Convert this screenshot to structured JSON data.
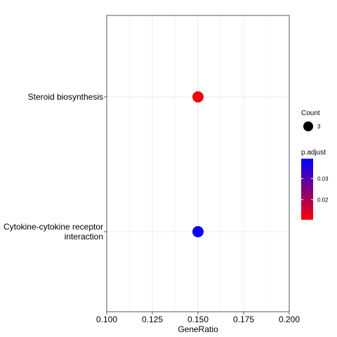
{
  "chart_data": {
    "type": "scatter",
    "xlabel": "GeneRatio",
    "ylabel": "",
    "xlim": [
      0.1,
      0.2
    ],
    "x_ticks": [
      "0.100",
      "0.125",
      "0.150",
      "0.175",
      "0.200"
    ],
    "x_tick_values": [
      0.1,
      0.125,
      0.15,
      0.175,
      0.2
    ],
    "categories": [
      "Steroid biosynthesis",
      "Cytokine-cytokine receptor interaction"
    ],
    "category_lines": [
      [
        "Steroid biosynthesis"
      ],
      [
        "Cytokine-cytokine receptor",
        "interaction"
      ]
    ],
    "points": [
      {
        "term": "Steroid biosynthesis",
        "x": 0.15,
        "count": 3,
        "p_adjust": 0.011,
        "color": "#f5000a"
      },
      {
        "term": "Cytokine-cytokine receptor interaction",
        "x": 0.15,
        "count": 3,
        "p_adjust": 0.039,
        "color": "#0a00f5"
      }
    ],
    "grid": true,
    "legend": {
      "position": "right",
      "size_title": "Count",
      "size_values": [
        "3"
      ],
      "color_title": "p.adjust",
      "color_ticks": [
        "0.03",
        "0.02"
      ],
      "color_tick_values": [
        0.03,
        0.02
      ],
      "color_range": [
        0.0105,
        0.0395
      ],
      "color_low": "#ff0000",
      "color_high": "#0000ff"
    }
  }
}
